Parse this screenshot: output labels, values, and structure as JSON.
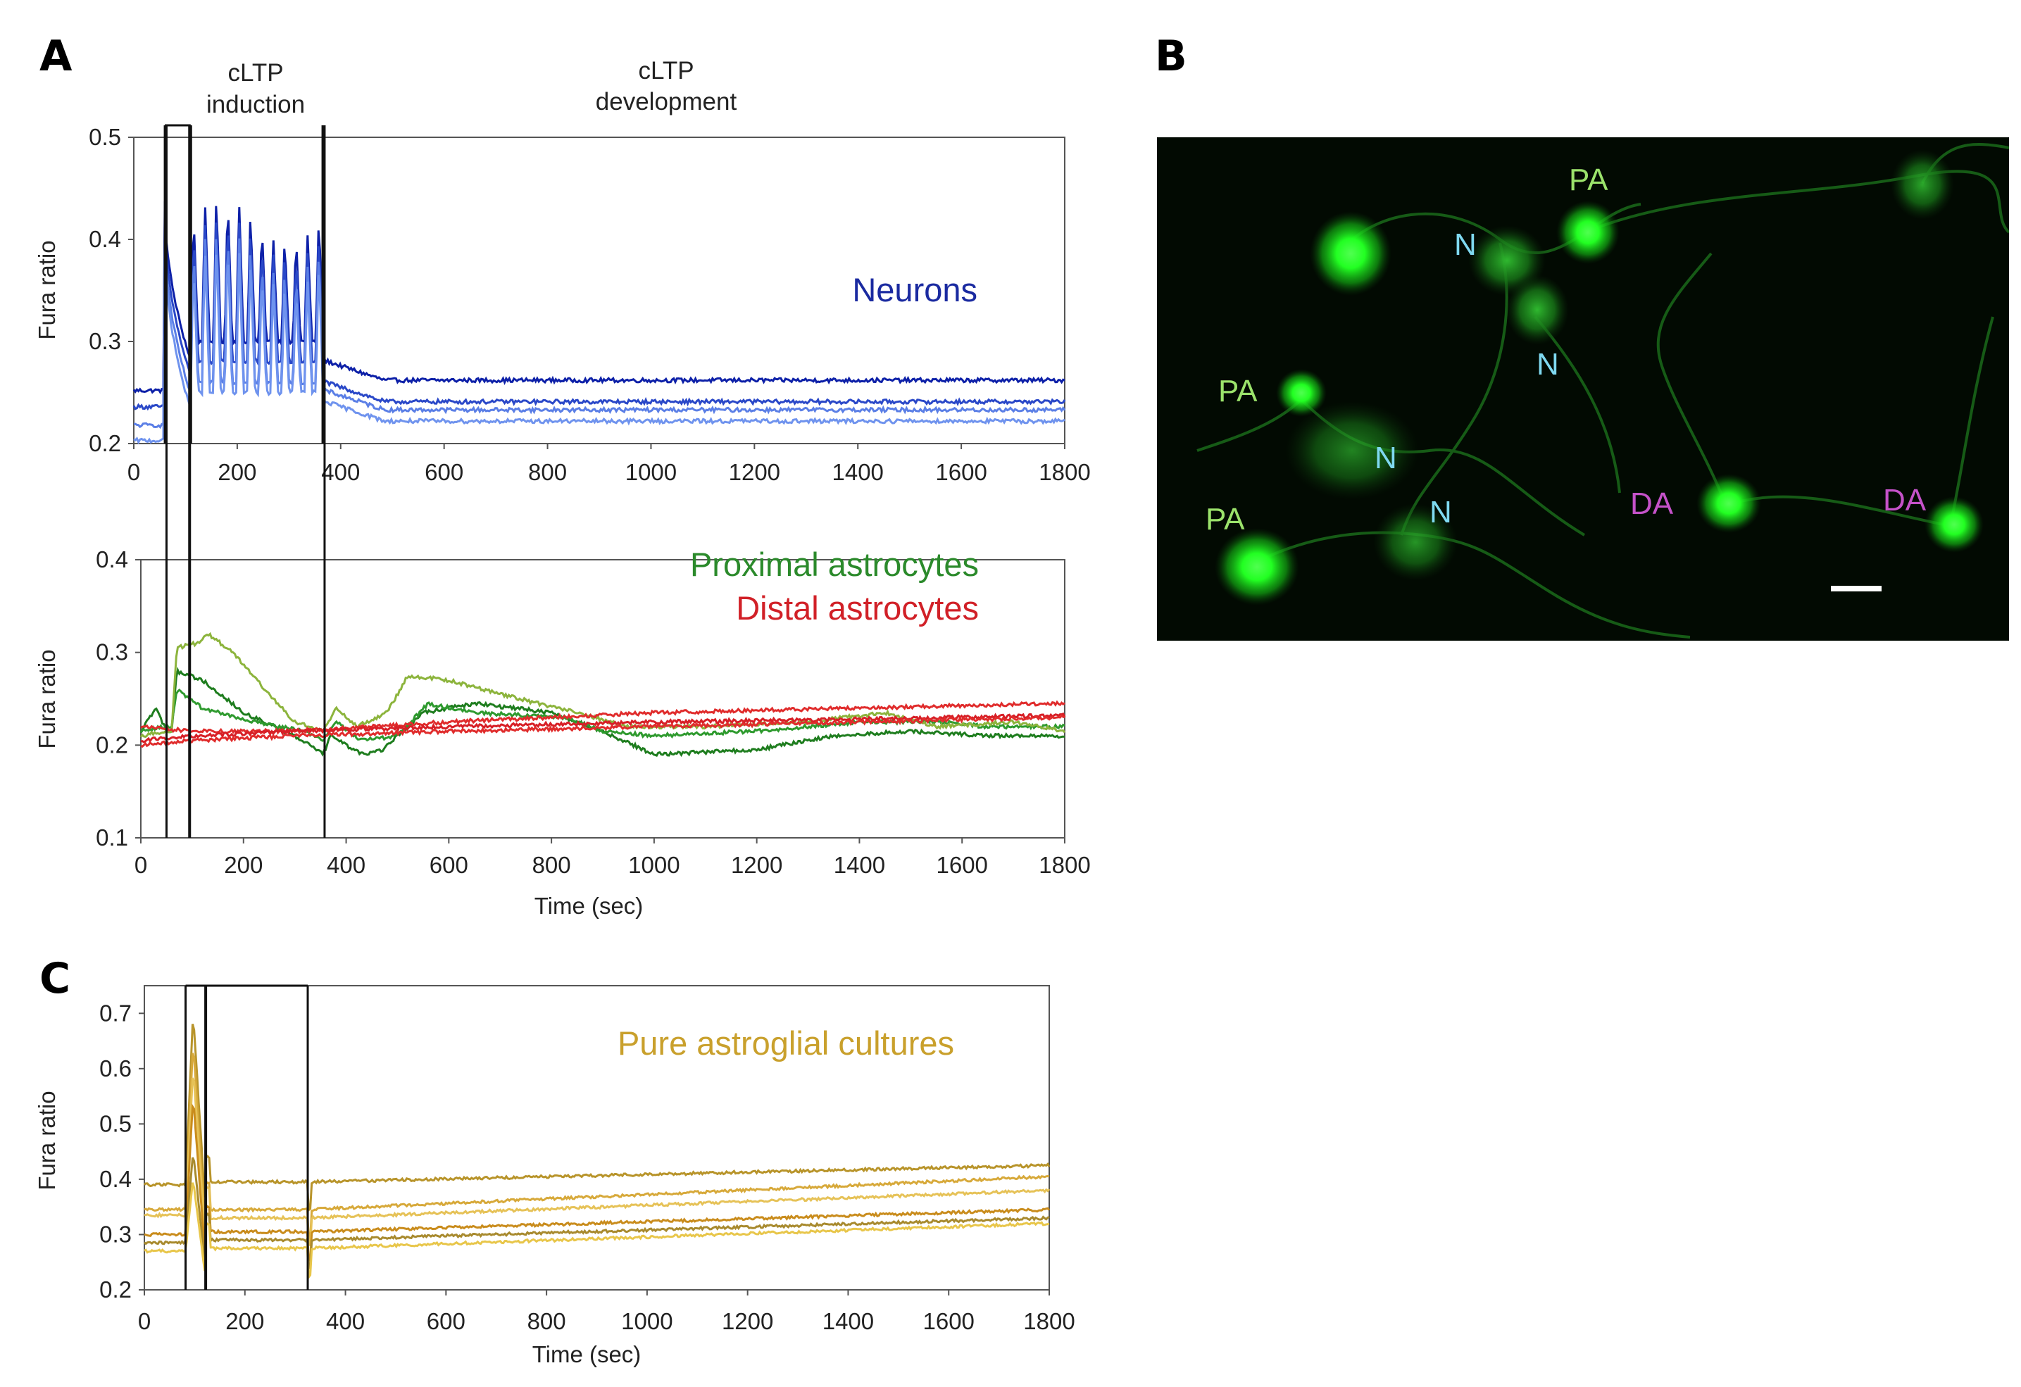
{
  "panels": {
    "A": "A",
    "B": "B",
    "C": "C"
  },
  "headers": {
    "induction": [
      "cLTP",
      "induction"
    ],
    "development": [
      "cLTP",
      "development"
    ]
  },
  "colors": {
    "neurons": [
      "#0d20a8",
      "#2a48c8",
      "#5b7fe6"
    ],
    "proximal": [
      "#1e7d1e",
      "#2e9a2e",
      "#8cb43c"
    ],
    "distal": [
      "#d71f26",
      "#e02c2c"
    ],
    "astro": [
      "#b8942a",
      "#d7a93a",
      "#e6c257",
      "#c98c1c",
      "#a88a2e",
      "#e8c64a"
    ],
    "micro_bg": "#020a02",
    "cell_green": "#30ff30",
    "label_green": "#9be36b",
    "label_cyan": "#7fd9f0",
    "label_magenta": "#c552c9"
  },
  "micrograph": {
    "labels": [
      {
        "text": "PA",
        "type": "proximal"
      },
      {
        "text": "N",
        "type": "neuron"
      },
      {
        "text": "N",
        "type": "neuron"
      },
      {
        "text": "PA",
        "type": "proximal"
      },
      {
        "text": "N",
        "type": "neuron"
      },
      {
        "text": "PA",
        "type": "proximal"
      },
      {
        "text": "N",
        "type": "neuron"
      },
      {
        "text": "DA",
        "type": "distal"
      },
      {
        "text": "DA",
        "type": "distal"
      }
    ]
  },
  "chart_data": [
    {
      "id": "A-top",
      "type": "line",
      "title": "",
      "legend": [
        "Neurons"
      ],
      "ylabel": "Fura ratio",
      "xlabel": "",
      "xlim": [
        0,
        1800
      ],
      "ylim": [
        0.2,
        0.5
      ],
      "xticks": [
        "0",
        "200",
        "400",
        "600",
        "800",
        "1000",
        "1200",
        "1400",
        "1600",
        "1800"
      ],
      "yticks": [
        "0.2",
        "0.3",
        "0.4",
        "0.5"
      ],
      "markers": [
        60,
        110,
        365
      ],
      "series": [
        {
          "name": "Neuron 1",
          "baseline": 0.252,
          "peak": 0.438,
          "plateau": 0.262,
          "ep_min": 0.3,
          "ep_max": 0.445
        },
        {
          "name": "Neuron 2",
          "baseline": 0.236,
          "peak": 0.425,
          "plateau": 0.241,
          "ep_min": 0.28,
          "ep_max": 0.43
        },
        {
          "name": "Neuron 3",
          "baseline": 0.218,
          "peak": 0.41,
          "plateau": 0.233,
          "ep_min": 0.26,
          "ep_max": 0.415
        },
        {
          "name": "Neuron 4",
          "baseline": 0.203,
          "peak": 0.4,
          "plateau": 0.222,
          "ep_min": 0.25,
          "ep_max": 0.4
        }
      ]
    },
    {
      "id": "A-bottom",
      "type": "line",
      "title": "",
      "legend": [
        "Proximal astrocytes",
        "Distal astrocytes"
      ],
      "ylabel": "Fura ratio",
      "xlabel": "Time (sec)",
      "xlim": [
        0,
        1800
      ],
      "ylim": [
        0.1,
        0.4
      ],
      "xticks": [
        "0",
        "200",
        "400",
        "600",
        "800",
        "1000",
        "1200",
        "1400",
        "1600",
        "1800"
      ],
      "yticks": [
        "0.1",
        "0.2",
        "0.3",
        "0.4"
      ],
      "markers": [
        50,
        95,
        358
      ],
      "series": [
        {
          "name": "Proximal 1",
          "group": "proximal",
          "points": [
            [
              0,
              0.215
            ],
            [
              30,
              0.24
            ],
            [
              50,
              0.215
            ],
            [
              60,
              0.215
            ],
            [
              70,
              0.28
            ],
            [
              120,
              0.27
            ],
            [
              200,
              0.235
            ],
            [
              300,
              0.21
            ],
            [
              355,
              0.19
            ],
            [
              370,
              0.21
            ],
            [
              430,
              0.19
            ],
            [
              470,
              0.195
            ],
            [
              550,
              0.235
            ],
            [
              650,
              0.245
            ],
            [
              800,
              0.235
            ],
            [
              900,
              0.215
            ],
            [
              1000,
              0.19
            ],
            [
              1200,
              0.195
            ],
            [
              1350,
              0.21
            ],
            [
              1500,
              0.215
            ],
            [
              1650,
              0.21
            ],
            [
              1800,
              0.21
            ]
          ]
        },
        {
          "name": "Proximal 2",
          "group": "proximal",
          "points": [
            [
              0,
              0.215
            ],
            [
              50,
              0.22
            ],
            [
              60,
              0.22
            ],
            [
              70,
              0.26
            ],
            [
              120,
              0.24
            ],
            [
              220,
              0.225
            ],
            [
              320,
              0.215
            ],
            [
              355,
              0.205
            ],
            [
              380,
              0.225
            ],
            [
              430,
              0.205
            ],
            [
              500,
              0.21
            ],
            [
              560,
              0.245
            ],
            [
              650,
              0.235
            ],
            [
              820,
              0.23
            ],
            [
              900,
              0.215
            ],
            [
              1000,
              0.21
            ],
            [
              1200,
              0.215
            ],
            [
              1400,
              0.225
            ],
            [
              1550,
              0.225
            ],
            [
              1650,
              0.22
            ],
            [
              1800,
              0.22
            ]
          ]
        },
        {
          "name": "Proximal 3",
          "group": "proximal",
          "points": [
            [
              0,
              0.21
            ],
            [
              50,
              0.215
            ],
            [
              60,
              0.215
            ],
            [
              70,
              0.305
            ],
            [
              110,
              0.31
            ],
            [
              130,
              0.32
            ],
            [
              180,
              0.3
            ],
            [
              250,
              0.255
            ],
            [
              300,
              0.225
            ],
            [
              355,
              0.215
            ],
            [
              380,
              0.24
            ],
            [
              420,
              0.22
            ],
            [
              480,
              0.235
            ],
            [
              520,
              0.275
            ],
            [
              600,
              0.27
            ],
            [
              700,
              0.255
            ],
            [
              850,
              0.235
            ],
            [
              950,
              0.22
            ],
            [
              1100,
              0.22
            ],
            [
              1300,
              0.225
            ],
            [
              1450,
              0.235
            ],
            [
              1550,
              0.22
            ],
            [
              1700,
              0.225
            ],
            [
              1800,
              0.215
            ]
          ]
        },
        {
          "name": "Distal 1",
          "group": "distal",
          "points": [
            [
              0,
              0.22
            ],
            [
              100,
              0.215
            ],
            [
              300,
              0.215
            ],
            [
              600,
              0.225
            ],
            [
              1000,
              0.235
            ],
            [
              1400,
              0.24
            ],
            [
              1800,
              0.245
            ]
          ]
        },
        {
          "name": "Distal 2",
          "group": "distal",
          "points": [
            [
              0,
              0.205
            ],
            [
              100,
              0.21
            ],
            [
              300,
              0.215
            ],
            [
              600,
              0.22
            ],
            [
              1000,
              0.225
            ],
            [
              1400,
              0.228
            ],
            [
              1800,
              0.232
            ]
          ]
        },
        {
          "name": "Distal 3",
          "group": "distal",
          "points": [
            [
              0,
              0.2
            ],
            [
              100,
              0.205
            ],
            [
              300,
              0.21
            ],
            [
              600,
              0.215
            ],
            [
              1000,
              0.22
            ],
            [
              1400,
              0.225
            ],
            [
              1800,
              0.23
            ]
          ]
        }
      ]
    },
    {
      "id": "C",
      "type": "line",
      "title": "",
      "legend": [
        "Pure astroglial cultures"
      ],
      "ylabel": "Fura ratio",
      "xlabel": "Time (sec)",
      "xlim": [
        0,
        1800
      ],
      "ylim": [
        0.2,
        0.75
      ],
      "xticks": [
        "0",
        "200",
        "400",
        "600",
        "800",
        "1000",
        "1200",
        "1400",
        "1600",
        "1800"
      ],
      "yticks": [
        "0.2",
        "0.3",
        "0.4",
        "0.5",
        "0.6",
        "0.7"
      ],
      "markers": [
        82,
        122,
        325
      ],
      "series": [
        {
          "name": "Astro 1",
          "baseline": 0.39,
          "peak": 0.7,
          "post": 0.395,
          "end": 0.425
        },
        {
          "name": "Astro 2",
          "baseline": 0.345,
          "peak": 0.65,
          "post": 0.345,
          "end": 0.405
        },
        {
          "name": "Astro 3",
          "baseline": 0.335,
          "peak": 0.6,
          "post": 0.33,
          "end": 0.38
        },
        {
          "name": "Astro 4",
          "baseline": 0.3,
          "peak": 0.55,
          "post": 0.305,
          "end": 0.345
        },
        {
          "name": "Astro 5",
          "baseline": 0.285,
          "peak": 0.45,
          "post": 0.29,
          "end": 0.33
        },
        {
          "name": "Astro 6",
          "baseline": 0.27,
          "peak": 0.4,
          "post": 0.275,
          "end": 0.32
        }
      ]
    }
  ]
}
